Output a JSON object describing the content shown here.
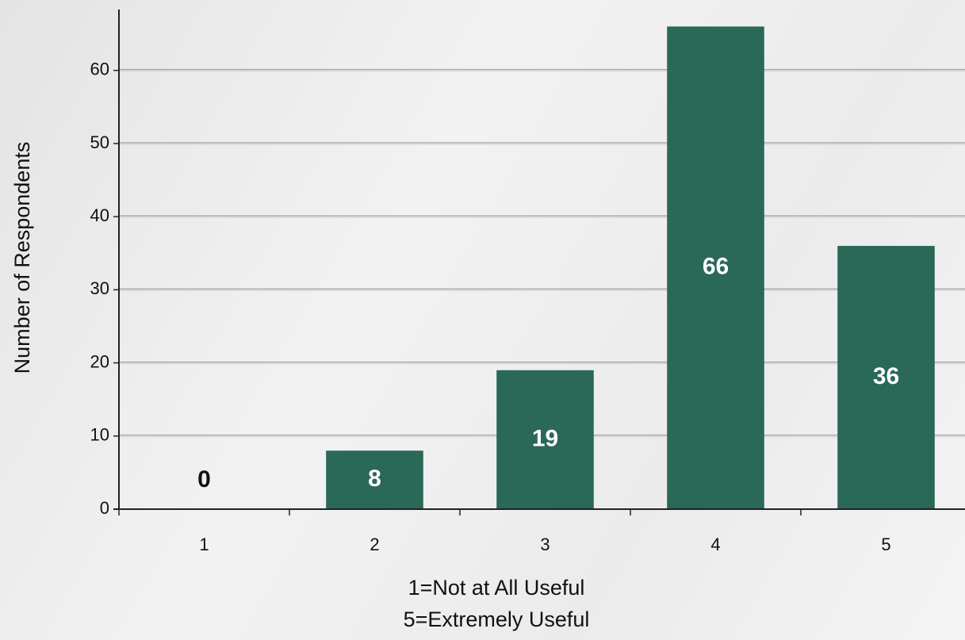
{
  "chart_data": {
    "type": "bar",
    "ylabel": "Number of Respondents",
    "xlabel_lines": [
      "1=Not at All Useful",
      "5=Extremely Useful"
    ],
    "categories": [
      "1",
      "2",
      "3",
      "4",
      "5"
    ],
    "values": [
      0,
      8,
      19,
      66,
      36
    ],
    "color": "#2a6858",
    "ylim": [
      0,
      68
    ],
    "yticks": [
      0,
      10,
      20,
      30,
      40,
      50,
      60
    ],
    "grid": true
  }
}
